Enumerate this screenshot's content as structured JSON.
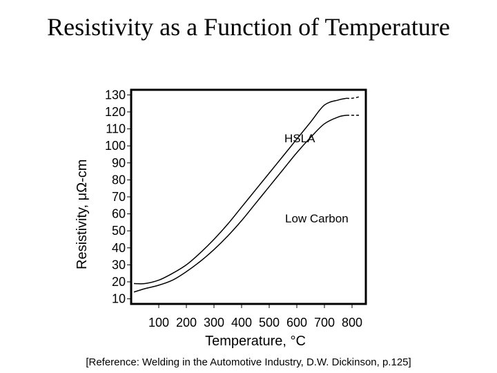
{
  "chart_data": {
    "type": "line",
    "title": "Resistivity as a Function of Temperature",
    "xlabel": "Temperature, °C",
    "ylabel": "Resistivity, μΩ-cm",
    "reference": "[Reference: Welding in the Automotive Industry, D.W. Dickinson, p.125]",
    "xlim": [
      0,
      850
    ],
    "ylim": [
      7,
      133
    ],
    "x_ticks": [
      100,
      200,
      300,
      400,
      500,
      600,
      700,
      800
    ],
    "y_ticks": [
      130,
      120,
      110,
      100,
      90,
      80,
      70,
      60,
      50,
      40,
      30,
      20,
      10
    ],
    "series": [
      {
        "name": "HSLA",
        "x": [
          10,
          50,
          100,
          150,
          200,
          250,
          300,
          350,
          400,
          450,
          500,
          550,
          600,
          650,
          700,
          750,
          780,
          800,
          830
        ],
        "values": [
          19,
          19,
          21,
          25,
          30,
          37,
          45,
          54,
          64,
          74,
          84,
          94,
          104,
          114,
          124,
          127,
          128,
          128,
          129
        ],
        "dashed_after": 780
      },
      {
        "name": "Low Carbon",
        "x": [
          10,
          50,
          100,
          150,
          200,
          250,
          300,
          350,
          400,
          450,
          500,
          550,
          600,
          650,
          700,
          750,
          780,
          800,
          830
        ],
        "values": [
          14,
          16,
          18,
          21,
          26,
          32,
          39,
          47,
          56,
          66,
          76,
          86,
          96,
          105,
          113,
          117,
          118,
          118,
          118
        ],
        "dashed_after": 780
      }
    ]
  }
}
